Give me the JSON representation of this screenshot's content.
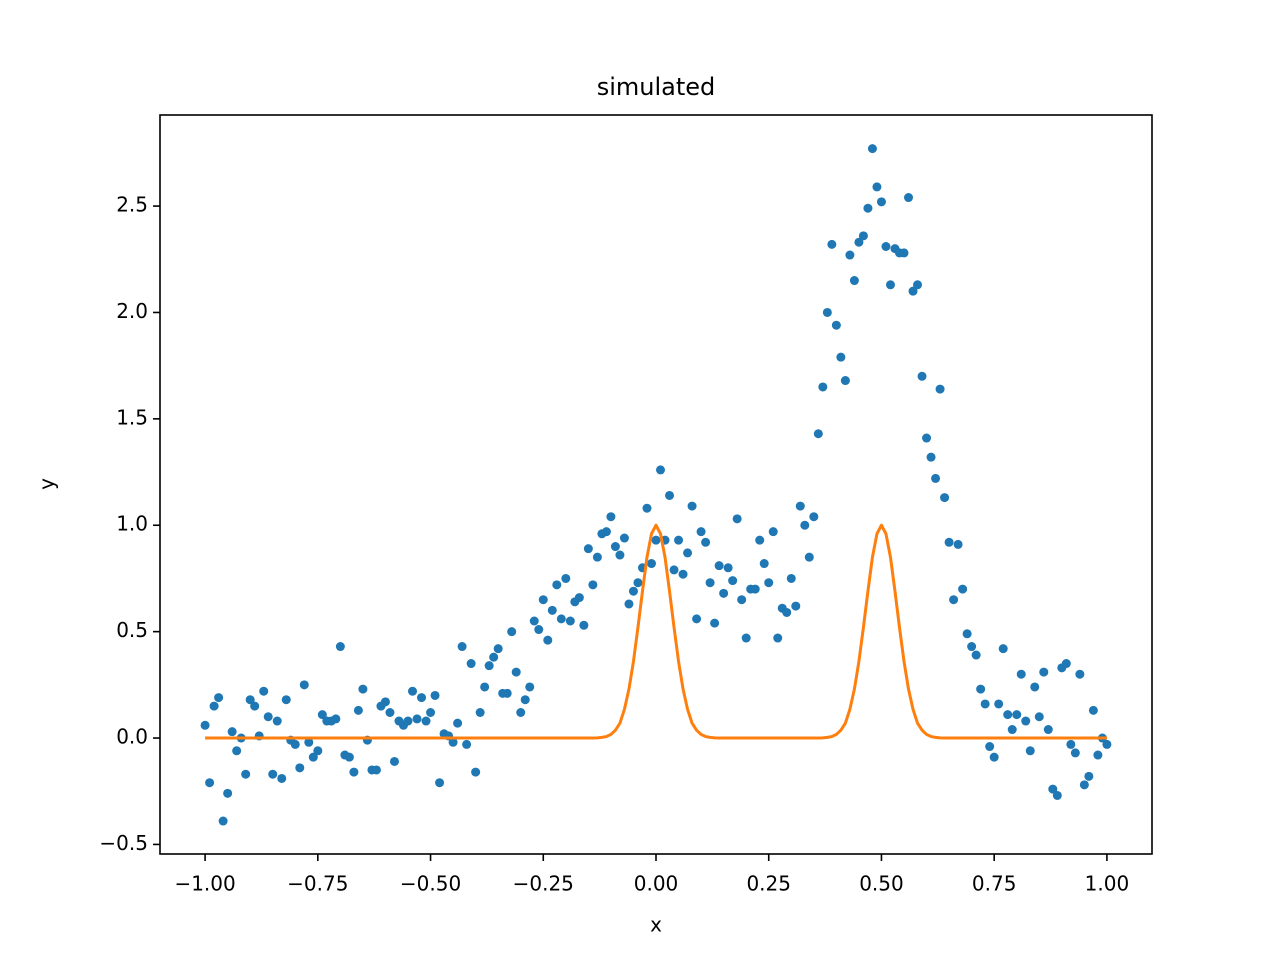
{
  "chart_data": {
    "type": "scatter",
    "title": "simulated",
    "x_label": "x",
    "y_label": "y",
    "xlim": [
      -1.1,
      1.1
    ],
    "ylim": [
      -0.545,
      2.928
    ],
    "xticks": [
      {
        "value": -1,
        "label": "−1.00"
      },
      {
        "value": -0.75,
        "label": "−0.75"
      },
      {
        "value": -0.5,
        "label": "−0.50"
      },
      {
        "value": -0.25,
        "label": "−0.25"
      },
      {
        "value": 0,
        "label": "0.00"
      },
      0.25,
      {
        "value": 0.5,
        "label": "0.50"
      },
      0.75,
      {
        "value": 1,
        "label": "1.00"
      }
    ],
    "yticks": [
      {
        "value": -0.5,
        "label": "−0.5"
      },
      {
        "value": 0,
        "label": "0.0"
      },
      0.5,
      {
        "value": 1,
        "label": "1.0"
      },
      1.5,
      {
        "value": 2,
        "label": "2.0"
      },
      2.5
    ],
    "grid": false,
    "series": [
      {
        "type": "scatter",
        "color": "#1f77b4",
        "x": [
          -1,
          -0.99,
          -0.98,
          -0.97,
          -0.96,
          -0.95,
          -0.94,
          -0.93,
          -0.92,
          -0.91,
          -0.9,
          -0.89,
          -0.88,
          -0.87,
          -0.86,
          -0.85,
          -0.84,
          -0.83,
          -0.82,
          -0.81,
          -0.8,
          -0.79,
          -0.78,
          -0.77,
          -0.76,
          -0.75,
          -0.74,
          -0.73,
          -0.72,
          -0.71,
          -0.7,
          -0.69,
          -0.68,
          -0.67,
          -0.66,
          -0.65,
          -0.64,
          -0.63,
          -0.62,
          -0.61,
          -0.6,
          -0.59,
          -0.58,
          -0.57,
          -0.56,
          -0.55,
          -0.54,
          -0.53,
          -0.52,
          -0.51,
          -0.5,
          -0.49,
          -0.48,
          -0.47,
          -0.46,
          -0.45,
          -0.44,
          -0.43,
          -0.42,
          -0.41,
          -0.4,
          -0.39,
          -0.38,
          -0.37,
          -0.36,
          -0.35,
          -0.34,
          -0.33,
          -0.32,
          -0.31,
          -0.3,
          -0.29,
          -0.28,
          -0.27,
          -0.26,
          -0.25,
          -0.24,
          -0.23,
          -0.22,
          -0.21,
          -0.2,
          -0.19,
          -0.18,
          -0.17,
          -0.16,
          -0.15,
          -0.14,
          -0.13,
          -0.12,
          -0.11,
          -0.1,
          -0.09,
          -0.08,
          -0.07,
          -0.06,
          -0.05,
          -0.04,
          -0.03,
          -0.02,
          -0.01,
          0,
          0.01,
          0.02,
          0.03,
          0.04,
          0.05,
          0.06,
          0.07,
          0.08,
          0.09,
          0.1,
          0.11,
          0.12,
          0.13,
          0.14,
          0.15,
          0.16,
          0.17,
          0.18,
          0.19,
          0.2,
          0.21,
          0.22,
          0.23,
          0.24,
          0.25,
          0.26,
          0.27,
          0.28,
          0.29,
          0.3,
          0.31,
          0.32,
          0.33,
          0.34,
          0.35,
          0.36,
          0.37,
          0.38,
          0.39,
          0.4,
          0.41,
          0.42,
          0.43,
          0.44,
          0.45,
          0.46,
          0.47,
          0.48,
          0.49,
          0.5,
          0.51,
          0.52,
          0.53,
          0.54,
          0.55,
          0.56,
          0.57,
          0.58,
          0.59,
          0.6,
          0.61,
          0.62,
          0.63,
          0.64,
          0.65,
          0.66,
          0.67,
          0.68,
          0.69,
          0.7,
          0.71,
          0.72,
          0.73,
          0.74,
          0.75,
          0.76,
          0.77,
          0.78,
          0.79,
          0.8,
          0.81,
          0.82,
          0.83,
          0.84,
          0.85,
          0.86,
          0.87,
          0.88,
          0.89,
          0.9,
          0.91,
          0.92,
          0.93,
          0.94,
          0.95,
          0.96,
          0.97,
          0.98,
          0.99,
          1
        ],
        "values": [
          0.06,
          -0.21,
          0.15,
          0.19,
          -0.39,
          -0.26,
          0.03,
          -0.06,
          0.0,
          -0.17,
          0.18,
          0.15,
          0.01,
          0.22,
          0.1,
          -0.17,
          0.08,
          -0.19,
          0.18,
          -0.01,
          -0.03,
          -0.14,
          0.25,
          -0.02,
          -0.09,
          -0.06,
          0.11,
          0.08,
          0.08,
          0.09,
          0.43,
          -0.08,
          -0.09,
          -0.16,
          0.13,
          0.23,
          -0.01,
          -0.15,
          -0.15,
          0.15,
          0.17,
          0.12,
          -0.11,
          0.08,
          0.06,
          0.08,
          0.22,
          0.09,
          0.19,
          0.08,
          0.12,
          0.2,
          -0.21,
          0.02,
          0.01,
          -0.02,
          0.07,
          0.43,
          -0.03,
          0.35,
          -0.16,
          0.12,
          0.24,
          0.34,
          0.38,
          0.42,
          0.21,
          0.21,
          0.5,
          0.31,
          0.12,
          0.18,
          0.24,
          0.55,
          0.51,
          0.65,
          0.46,
          0.6,
          0.72,
          0.56,
          0.75,
          0.55,
          0.64,
          0.66,
          0.53,
          0.89,
          0.72,
          0.85,
          0.96,
          0.97,
          1.04,
          0.9,
          0.86,
          0.94,
          0.63,
          0.69,
          0.73,
          0.8,
          1.08,
          0.82,
          0.93,
          1.26,
          0.93,
          1.14,
          0.79,
          0.93,
          0.77,
          0.87,
          1.09,
          0.56,
          0.97,
          0.92,
          0.73,
          0.54,
          0.81,
          0.68,
          0.8,
          0.74,
          1.03,
          0.65,
          0.47,
          0.7,
          0.7,
          0.93,
          0.82,
          0.73,
          0.97,
          0.47,
          0.61,
          0.59,
          0.75,
          0.62,
          1.09,
          1.0,
          0.85,
          1.04,
          1.43,
          1.65,
          2.0,
          2.32,
          1.94,
          1.79,
          1.68,
          2.27,
          2.15,
          2.33,
          2.36,
          2.49,
          2.77,
          2.59,
          2.52,
          2.31,
          2.13,
          2.3,
          2.28,
          2.28,
          2.54,
          2.1,
          2.13,
          1.7,
          1.41,
          1.32,
          1.22,
          1.64,
          1.13,
          0.92,
          0.65,
          0.91,
          0.7,
          0.49,
          0.43,
          0.39,
          0.23,
          0.16,
          -0.04,
          -0.09,
          0.16,
          0.42,
          0.11,
          0.04,
          0.11,
          0.3,
          0.08,
          -0.06,
          0.24,
          0.1,
          0.31,
          0.04,
          -0.24,
          -0.27,
          0.33,
          0.35,
          -0.03,
          -0.07,
          0.3,
          -0.22,
          -0.18,
          0.13,
          -0.08,
          0.0,
          -0.03
        ]
      },
      {
        "type": "line",
        "color": "#ff7f0e",
        "x": [
          -1,
          -0.14,
          -0.13,
          -0.12,
          -0.11,
          -0.1,
          -0.09,
          -0.08,
          -0.07,
          -0.06,
          -0.05,
          -0.04,
          -0.03,
          -0.02,
          -0.01,
          0,
          0.01,
          0.02,
          0.03,
          0.04,
          0.05,
          0.06,
          0.07,
          0.08,
          0.09,
          0.1,
          0.11,
          0.12,
          0.13,
          0.14,
          0.36,
          0.37,
          0.38,
          0.39,
          0.4,
          0.41,
          0.42,
          0.43,
          0.44,
          0.45,
          0.46,
          0.47,
          0.48,
          0.49,
          0.5,
          0.51,
          0.52,
          0.53,
          0.54,
          0.55,
          0.56,
          0.57,
          0.58,
          0.59,
          0.6,
          0.61,
          0.62,
          0.63,
          0.64,
          1
        ],
        "values": [
          0,
          0,
          0.001,
          0.003,
          0.007,
          0.017,
          0.037,
          0.07,
          0.135,
          0.23,
          0.36,
          0.52,
          0.69,
          0.85,
          0.96,
          1,
          0.96,
          0.85,
          0.69,
          0.52,
          0.36,
          0.23,
          0.135,
          0.07,
          0.037,
          0.017,
          0.007,
          0.003,
          0.001,
          0,
          0,
          0.001,
          0.003,
          0.007,
          0.017,
          0.037,
          0.07,
          0.135,
          0.23,
          0.36,
          0.52,
          0.69,
          0.85,
          0.96,
          1,
          0.96,
          0.85,
          0.69,
          0.52,
          0.36,
          0.23,
          0.135,
          0.07,
          0.037,
          0.017,
          0.007,
          0.003,
          0.001,
          0,
          0
        ]
      }
    ]
  }
}
